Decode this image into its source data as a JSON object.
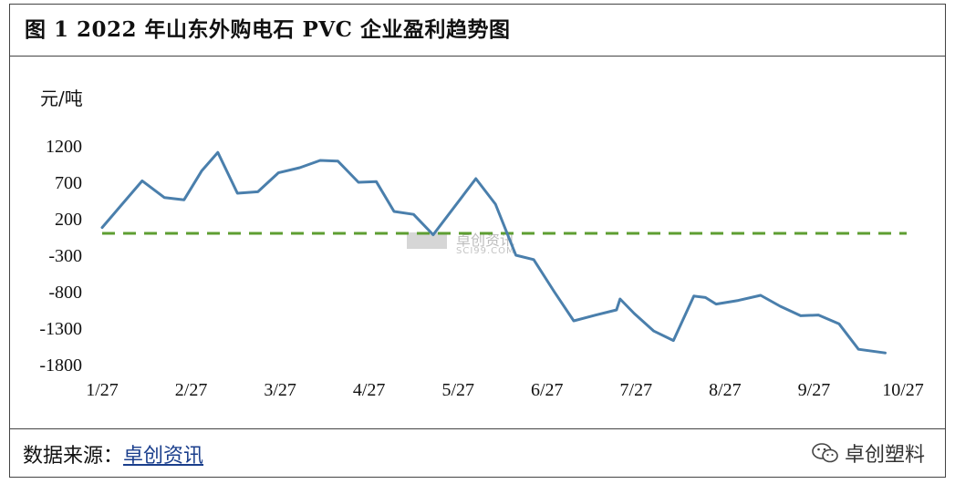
{
  "title": "图 1 2022 年山东外购电石 PVC 企业盈利趋势图",
  "source": {
    "label": "数据来源：",
    "name": "卓创资讯"
  },
  "brand": {
    "name": "卓创塑料",
    "icon": "wechat-icon"
  },
  "watermark": {
    "name": "卓创资讯",
    "domain": "SCI99.COM"
  },
  "chart_data": {
    "type": "line",
    "ylabel": "元/吨",
    "ylim": [
      -1800,
      1200
    ],
    "yticks": [
      1200,
      700,
      200,
      -300,
      -800,
      -1300,
      -1800
    ],
    "xlim": [
      0,
      9
    ],
    "xticks": [
      "1/27",
      "2/27",
      "3/27",
      "4/27",
      "5/27",
      "6/27",
      "7/27",
      "8/27",
      "9/27",
      "10/27"
    ],
    "reference_line": {
      "value": 0,
      "style": "dashed",
      "color": "#5e9e32"
    },
    "grid": false,
    "series": [
      {
        "color": "#4a7fac",
        "points": [
          [
            0.0,
            80
          ],
          [
            0.45,
            720
          ],
          [
            0.7,
            490
          ],
          [
            0.92,
            460
          ],
          [
            1.12,
            860
          ],
          [
            1.3,
            1110
          ],
          [
            1.52,
            550
          ],
          [
            1.75,
            570
          ],
          [
            1.98,
            830
          ],
          [
            2.22,
            900
          ],
          [
            2.45,
            1000
          ],
          [
            2.65,
            990
          ],
          [
            2.88,
            700
          ],
          [
            3.08,
            710
          ],
          [
            3.28,
            300
          ],
          [
            3.5,
            260
          ],
          [
            3.72,
            -20
          ],
          [
            4.2,
            750
          ],
          [
            4.42,
            400
          ],
          [
            4.65,
            -300
          ],
          [
            4.85,
            -360
          ],
          [
            5.08,
            -800
          ],
          [
            5.3,
            -1200
          ],
          [
            5.55,
            -1120
          ],
          [
            5.78,
            -1050
          ],
          [
            5.82,
            -900
          ],
          [
            5.98,
            -1100
          ],
          [
            6.2,
            -1340
          ],
          [
            6.42,
            -1470
          ],
          [
            6.65,
            -860
          ],
          [
            6.78,
            -880
          ],
          [
            6.9,
            -970
          ],
          [
            7.15,
            -920
          ],
          [
            7.4,
            -850
          ],
          [
            7.62,
            -1000
          ],
          [
            7.85,
            -1130
          ],
          [
            8.05,
            -1120
          ],
          [
            8.28,
            -1240
          ],
          [
            8.5,
            -1590
          ],
          [
            8.8,
            -1640
          ]
        ]
      }
    ]
  }
}
